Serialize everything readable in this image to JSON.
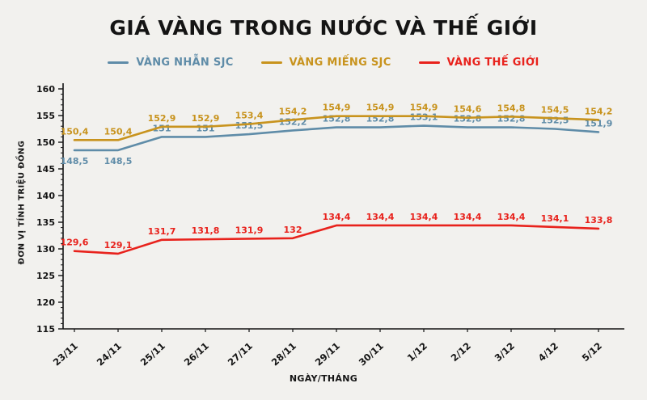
{
  "title": "GIÁ VÀNG TRONG NƯỚC VÀ THẾ GIỚI",
  "chart_data": {
    "type": "line",
    "categories": [
      "23/11",
      "24/11",
      "25/11",
      "26/11",
      "27/11",
      "28/11",
      "29/11",
      "30/11",
      "1/12",
      "2/12",
      "3/12",
      "4/12",
      "5/12"
    ],
    "series": [
      {
        "name": "VÀNG NHẪN SJC",
        "color": "#5f8ca8",
        "values": [
          148.5,
          148.5,
          151,
          151,
          151.5,
          152.2,
          152.8,
          152.8,
          153.1,
          152.8,
          152.8,
          152.5,
          151.9
        ]
      },
      {
        "name": "VÀNG MIẾNG SJC",
        "color": "#c8931d",
        "values": [
          150.4,
          150.4,
          152.9,
          152.9,
          153.4,
          154.2,
          154.9,
          154.9,
          154.9,
          154.6,
          154.8,
          154.5,
          154.2
        ]
      },
      {
        "name": "VÀNG THẾ GIỚI",
        "color": "#e8221c",
        "values": [
          129.6,
          129.1,
          131.7,
          131.8,
          131.9,
          132,
          134.4,
          134.4,
          134.4,
          134.4,
          134.4,
          134.1,
          133.8
        ]
      }
    ],
    "xlabel": "NGÀY/THÁNG",
    "ylabel": "ĐƠN VỊ TÍNH TRIỆU ĐỒNG",
    "ylim": [
      115,
      160
    ],
    "ytick_step": 5,
    "grid": false,
    "legend_position": "top",
    "decimal_separator": ","
  },
  "colors": {
    "background": "#f2f1ee",
    "axis": "#141414",
    "text": "#141414"
  }
}
